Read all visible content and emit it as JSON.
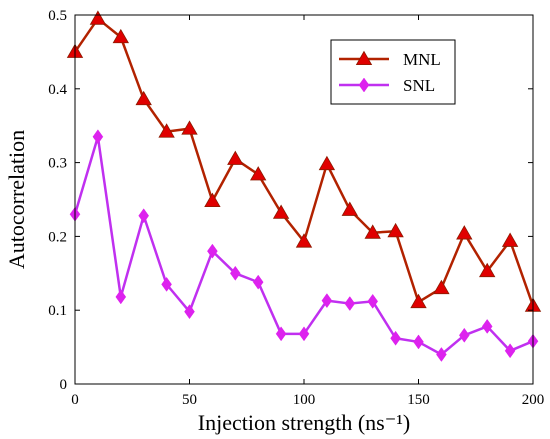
{
  "chart_data": {
    "type": "line",
    "xlabel": "Injection strength (ns⁻¹)",
    "ylabel": "Autocorrelation",
    "xlim": [
      0,
      200
    ],
    "ylim": [
      0,
      0.5
    ],
    "xticks": [
      0,
      50,
      100,
      150,
      200
    ],
    "yticks": [
      0,
      0.1,
      0.2,
      0.3,
      0.4,
      0.5
    ],
    "xtick_labels": [
      "0",
      "50",
      "100",
      "150",
      "200"
    ],
    "ytick_labels": [
      "0",
      "0.1",
      "0.2",
      "0.3",
      "0.4",
      "0.5"
    ],
    "grid": false,
    "legend_position": "top-right",
    "x": [
      0,
      10,
      20,
      30,
      40,
      50,
      60,
      70,
      80,
      90,
      100,
      110,
      120,
      130,
      140,
      150,
      160,
      170,
      180,
      190,
      200
    ],
    "series": [
      {
        "name": "MNL",
        "color": "#b22200",
        "marker_color": "#e00000",
        "marker": "triangle",
        "values": [
          0.45,
          0.495,
          0.47,
          0.386,
          0.342,
          0.346,
          0.248,
          0.305,
          0.284,
          0.232,
          0.193,
          0.298,
          0.236,
          0.205,
          0.207,
          0.111,
          0.13,
          0.204,
          0.153,
          0.194,
          0.106
        ]
      },
      {
        "name": "SNL",
        "color": "#c030f0",
        "marker_color": "#dd22ee",
        "marker": "diamond",
        "values": [
          0.23,
          0.335,
          0.118,
          0.228,
          0.135,
          0.098,
          0.18,
          0.15,
          0.138,
          0.068,
          0.068,
          0.113,
          0.109,
          0.112,
          0.062,
          0.057,
          0.04,
          0.066,
          0.078,
          0.045,
          0.058
        ]
      }
    ]
  }
}
